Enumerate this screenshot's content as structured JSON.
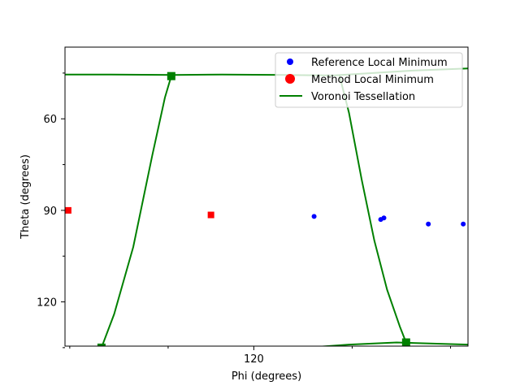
{
  "chart_data": {
    "type": "scatter",
    "xlabel": "Phi (degrees)",
    "ylabel": "Theta (degrees)",
    "xlim": [
      60.5,
      187.5
    ],
    "ylim": [
      134.5,
      36.5
    ],
    "y_inverted": true,
    "x_major_ticks": [
      120
    ],
    "x_minor_ticks": [
      62,
      93,
      151,
      182
    ],
    "y_major_ticks": [
      60,
      90,
      120
    ],
    "y_minor_ticks": [
      45,
      75,
      105,
      135
    ],
    "legend_position": "top-right",
    "series": [
      {
        "name": "Reference Local Minimum",
        "marker": "circle",
        "color": "#0000ff",
        "points": [
          [
            139,
            92
          ],
          [
            160,
            93
          ],
          [
            161,
            92.5
          ],
          [
            175,
            94.5
          ],
          [
            186,
            94.5
          ]
        ]
      },
      {
        "name": "Method Local Minimum",
        "marker": "square",
        "color": "#ff0000",
        "points": [
          [
            61.5,
            90
          ],
          [
            106.5,
            91.5
          ]
        ]
      },
      {
        "name": "Voronoi Tessellation",
        "marker": "line",
        "color": "#008000",
        "lines": [
          [
            [
              60.5,
              45.5
            ],
            [
              75,
              45.5
            ],
            [
              95,
              45.6
            ],
            [
              110,
              45.5
            ],
            [
              130,
              45.6
            ],
            [
              145,
              45.8
            ],
            [
              170,
              44.2
            ],
            [
              187.5,
              43.5
            ]
          ],
          [
            [
              60.5,
              135
            ],
            [
              72,
              135
            ],
            [
              90,
              135.7
            ],
            [
              110,
              136
            ],
            [
              130,
              135.5
            ],
            [
              150,
              134
            ],
            [
              165,
              133.3
            ],
            [
              187.5,
              134
            ]
          ],
          [
            [
              72,
              135
            ],
            [
              76,
              124
            ],
            [
              82,
              102
            ],
            [
              88,
              72
            ],
            [
              92,
              53
            ],
            [
              94,
              46
            ]
          ],
          [
            [
              147,
              45.8
            ],
            [
              150,
              58
            ],
            [
              154,
              80
            ],
            [
              158,
              100
            ],
            [
              162,
              116
            ],
            [
              166,
              128
            ],
            [
              168,
              133.3
            ]
          ]
        ],
        "vertices": [
          [
            72,
            135
          ],
          [
            94,
            46
          ],
          [
            168,
            133.3
          ]
        ]
      }
    ]
  }
}
